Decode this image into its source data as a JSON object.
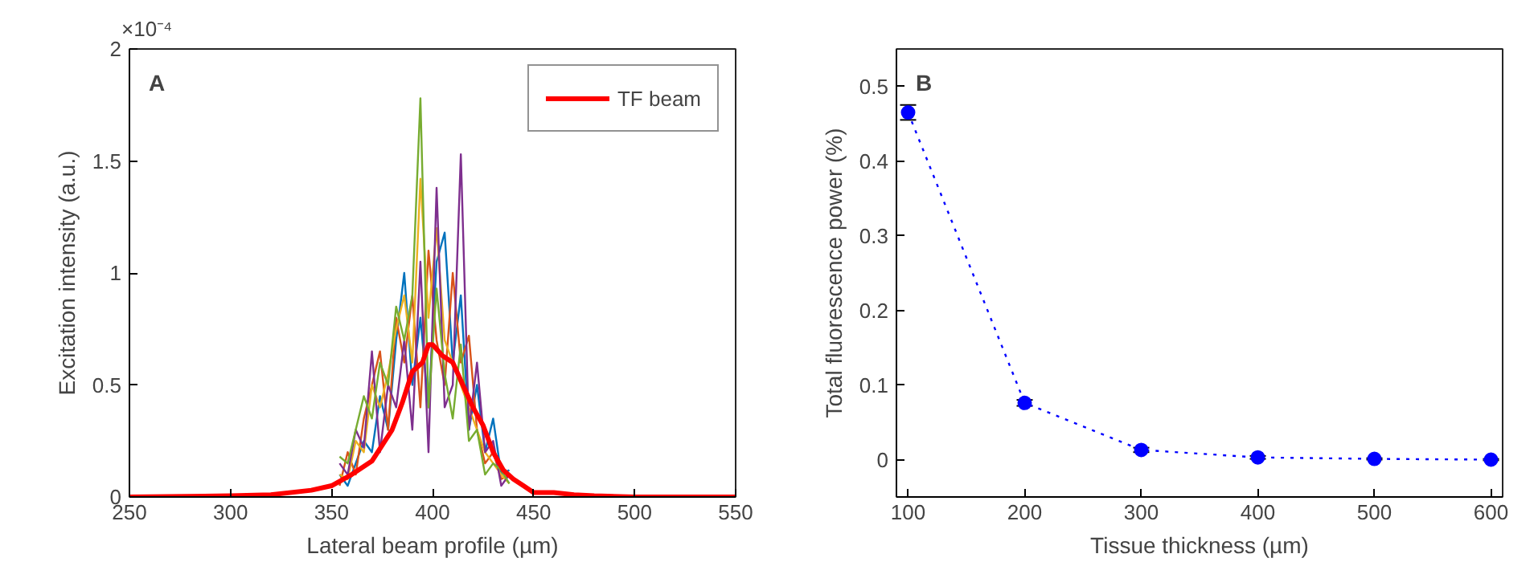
{
  "chart_data": [
    {
      "type": "line",
      "title": "A",
      "xlabel": "Lateral beam profile (µm)",
      "ylabel": "Excitation intensity (a.u.)",
      "annotations": [
        "×10⁻⁴"
      ],
      "xlim": [
        250,
        550
      ],
      "ylim": [
        0,
        2
      ],
      "xticks": [
        250,
        300,
        350,
        400,
        450,
        500,
        550
      ],
      "yticks": [
        0,
        0.5,
        1,
        1.5,
        2
      ],
      "grid": false,
      "legend": "top right",
      "marker": "none",
      "line_style": "solid",
      "series": [
        {
          "color": "#0072bd",
          "x": [
            354,
            358,
            362,
            366,
            370,
            374,
            378,
            382,
            386,
            390,
            394,
            398,
            402,
            406,
            410,
            414,
            418,
            422,
            426,
            430,
            434,
            438
          ],
          "values": [
            0.1,
            0.05,
            0.15,
            0.25,
            0.2,
            0.45,
            0.3,
            0.7,
            1.0,
            0.5,
            0.8,
            0.4,
            1.05,
            1.18,
            0.6,
            0.9,
            0.3,
            0.5,
            0.2,
            0.35,
            0.1,
            0.12
          ]
        },
        {
          "color": "#d95319",
          "x": [
            354,
            358,
            362,
            366,
            370,
            374,
            378,
            382,
            386,
            390,
            394,
            398,
            402,
            406,
            410,
            414,
            418,
            422,
            426,
            430,
            434,
            438
          ],
          "values": [
            0.05,
            0.2,
            0.1,
            0.35,
            0.5,
            0.65,
            0.3,
            0.8,
            0.6,
            0.9,
            0.4,
            1.1,
            0.7,
            0.5,
            1.0,
            0.6,
            0.72,
            0.3,
            0.15,
            0.2,
            0.08,
            0.1
          ]
        },
        {
          "color": "#edb120",
          "x": [
            354,
            358,
            362,
            366,
            370,
            374,
            378,
            382,
            386,
            390,
            394,
            398,
            402,
            406,
            410,
            414,
            418,
            422,
            426,
            430,
            434,
            438
          ],
          "values": [
            0.1,
            0.08,
            0.25,
            0.2,
            0.5,
            0.4,
            0.55,
            0.75,
            0.9,
            0.6,
            1.42,
            0.8,
            1.2,
            0.7,
            0.6,
            0.5,
            0.4,
            0.3,
            0.2,
            0.15,
            0.1,
            0.06
          ]
        },
        {
          "color": "#7e2f8e",
          "x": [
            354,
            358,
            362,
            366,
            370,
            374,
            378,
            382,
            386,
            390,
            394,
            398,
            402,
            406,
            410,
            414,
            418,
            422,
            426,
            430,
            434,
            438
          ],
          "values": [
            0.15,
            0.1,
            0.3,
            0.22,
            0.65,
            0.2,
            0.5,
            0.4,
            0.7,
            0.3,
            1.05,
            0.2,
            1.38,
            0.4,
            0.5,
            1.53,
            0.3,
            0.6,
            0.2,
            0.25,
            0.05,
            0.1
          ]
        },
        {
          "color": "#77ac30",
          "x": [
            354,
            358,
            362,
            366,
            370,
            374,
            378,
            382,
            386,
            390,
            394,
            398,
            402,
            406,
            410,
            414,
            418,
            422,
            426,
            430,
            434,
            438
          ],
          "values": [
            0.18,
            0.15,
            0.3,
            0.45,
            0.35,
            0.6,
            0.5,
            0.85,
            0.7,
            0.9,
            1.78,
            0.4,
            0.93,
            0.55,
            0.35,
            0.68,
            0.25,
            0.3,
            0.1,
            0.15,
            0.12,
            0.06
          ]
        },
        {
          "name": "TF beam",
          "color": "#ff0000",
          "x": [
            250,
            300,
            320,
            340,
            350,
            360,
            370,
            380,
            385,
            390,
            395,
            398,
            400,
            405,
            410,
            415,
            420,
            425,
            430,
            435,
            440,
            445,
            450,
            460,
            470,
            480,
            500,
            550
          ],
          "values": [
            0,
            0.005,
            0.01,
            0.03,
            0.05,
            0.1,
            0.16,
            0.3,
            0.42,
            0.56,
            0.6,
            0.68,
            0.68,
            0.63,
            0.6,
            0.5,
            0.4,
            0.32,
            0.2,
            0.12,
            0.08,
            0.05,
            0.02,
            0.02,
            0.01,
            0.005,
            0,
            0
          ]
        }
      ]
    },
    {
      "type": "line",
      "title": "B",
      "xlabel": "Tissue thickness (µm)",
      "ylabel": "Total fluorescence power (%)",
      "x": [
        100,
        200,
        300,
        400,
        500,
        600
      ],
      "xlim": [
        90,
        610
      ],
      "ylim": [
        -0.05,
        0.55
      ],
      "xticks": [
        100,
        200,
        300,
        400,
        500,
        600
      ],
      "yticks": [
        0,
        0.1,
        0.2,
        0.3,
        0.4,
        0.5
      ],
      "grid": false,
      "marker": "circle",
      "line_style": "dotted",
      "series": [
        {
          "color": "#0000ff",
          "values": [
            0.465,
            0.076,
            0.013,
            0.003,
            0.001,
            0.0
          ],
          "errors": [
            0.01,
            0.004,
            0.003,
            0.002,
            0.001,
            0.001
          ]
        }
      ]
    }
  ]
}
